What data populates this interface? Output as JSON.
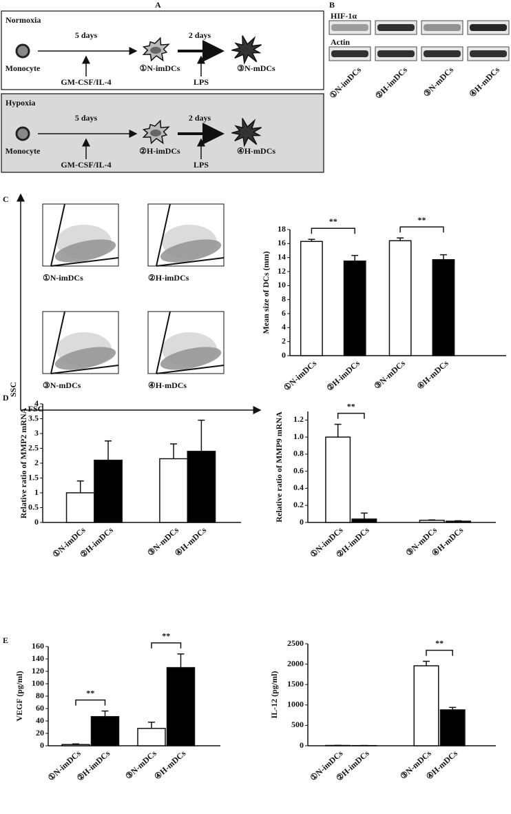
{
  "diagram": {
    "panel": "A",
    "rows": [
      {
        "condition": "Normoxia",
        "cell": "Monocyte",
        "step1": "5 days",
        "stimulus1": "GM-CSF/IL-4",
        "stage1": "①N-imDCs",
        "step2": "2 days",
        "stimulus2": "LPS",
        "stage2": "③N-mDCs"
      },
      {
        "condition": "Hypoxia",
        "cell": "Monocyte",
        "step1": "5 days",
        "stimulus1": "GM-CSF/IL-4",
        "stage1": "②H-imDCs",
        "step2": "2 days",
        "stimulus2": "LPS",
        "stage2": "④H-mDCs"
      }
    ]
  },
  "blot": {
    "panel": "B",
    "rows": [
      "HIF-1α",
      "Actin"
    ],
    "lanes": [
      "①N-imDCs",
      "②H-imDCs",
      "③N-mDCs",
      "④H-mDCs"
    ]
  },
  "flow": {
    "panel": "C",
    "samples": [
      "①N-imDCs",
      "②H-imDCs",
      "③N-mDCs",
      "④H-mDCs"
    ],
    "ylabel": "SSC",
    "xlabel": "FSC"
  },
  "chart_data": [
    {
      "type": "bar",
      "ylabel": "Mean size of DCs (mm)",
      "categories": [
        "①N-imDCs",
        "②H-imDCs",
        "③N-mDCs",
        "④H-mDCs"
      ],
      "values": [
        16.3,
        13.5,
        16.4,
        13.7
      ],
      "errors": [
        0.3,
        0.8,
        0.4,
        0.7
      ],
      "colors": [
        "#ffffff",
        "#000000",
        "#ffffff",
        "#000000"
      ],
      "ylim": [
        0,
        18
      ],
      "yticks": [
        0,
        2,
        4,
        6,
        8,
        10,
        12,
        14,
        16,
        18
      ],
      "annotations": [
        {
          "text": "**",
          "categories": [
            "①N-imDCs",
            "②H-imDCs"
          ]
        },
        {
          "text": "**",
          "categories": [
            "③N-mDCs",
            "④H-mDCs"
          ]
        }
      ]
    },
    {
      "type": "bar",
      "panel": "D",
      "ylabel": "Relative ratio of MMP2 mRNA",
      "categories": [
        "①N-imDCs",
        "②H-imDCs",
        "③N-mDCs",
        "④H-mDCs"
      ],
      "values": [
        1.0,
        2.1,
        2.15,
        2.4
      ],
      "errors": [
        0.4,
        0.65,
        0.5,
        1.05
      ],
      "colors": [
        "#ffffff",
        "#000000",
        "#ffffff",
        "#000000"
      ],
      "ylim": [
        0,
        4
      ],
      "yticks": [
        0,
        0.5,
        1,
        1.5,
        2,
        2.5,
        3,
        3.5,
        4
      ],
      "annotations": []
    },
    {
      "type": "bar",
      "ylabel": "Relative ratio of MMP9 mRNA",
      "categories": [
        "①N-imDCs",
        "②H-imDCs",
        "③N-mDCs",
        "④H-mDCs"
      ],
      "values": [
        1.0,
        0.04,
        0.025,
        0.015
      ],
      "errors": [
        0.15,
        0.07,
        0.005,
        0.005
      ],
      "colors": [
        "#ffffff",
        "#000000",
        "#ffffff",
        "#000000"
      ],
      "ylim": [
        0,
        1.3
      ],
      "yticks": [
        0,
        0.2,
        0.4,
        0.6,
        0.8,
        {
          "value": 1,
          "label": "1.0"
        },
        1.2
      ],
      "annotations": [
        {
          "text": "**",
          "categories": [
            "①N-imDCs",
            "②H-imDCs"
          ]
        }
      ]
    },
    {
      "type": "bar",
      "panel": "E",
      "ylabel": "VEGF (pg/ml)",
      "categories": [
        "①N-imDCs",
        "②H-imDCs",
        "③N-mDCs",
        "④H-mDCs"
      ],
      "values": [
        2,
        47,
        28,
        126
      ],
      "errors": [
        1,
        9,
        10,
        22
      ],
      "colors": [
        "#ffffff",
        "#000000",
        "#ffffff",
        "#000000"
      ],
      "ylim": [
        0,
        160
      ],
      "yticks": [
        0,
        20,
        40,
        60,
        80,
        100,
        120,
        140,
        160
      ],
      "annotations": [
        {
          "text": "**",
          "categories": [
            "①N-imDCs",
            "②H-imDCs"
          ]
        },
        {
          "text": "**",
          "categories": [
            "③N-mDCs",
            "④H-mDCs"
          ]
        }
      ]
    },
    {
      "type": "bar",
      "ylabel": "IL-12 (pg/ml)",
      "categories": [
        "①N-imDCs",
        "②H-imDCs",
        "③N-mDCs",
        "④H-mDCs"
      ],
      "values": [
        8,
        5,
        1960,
        880
      ],
      "errors": [
        2,
        2,
        110,
        60
      ],
      "colors": [
        "#ffffff",
        "#000000",
        "#ffffff",
        "#000000"
      ],
      "ylim": [
        0,
        2500
      ],
      "yticks": [
        0,
        500,
        1000,
        1500,
        2000,
        2500
      ],
      "annotations": [
        {
          "text": "**",
          "categories": [
            "③N-mDCs",
            "④H-mDCs"
          ]
        }
      ]
    }
  ]
}
